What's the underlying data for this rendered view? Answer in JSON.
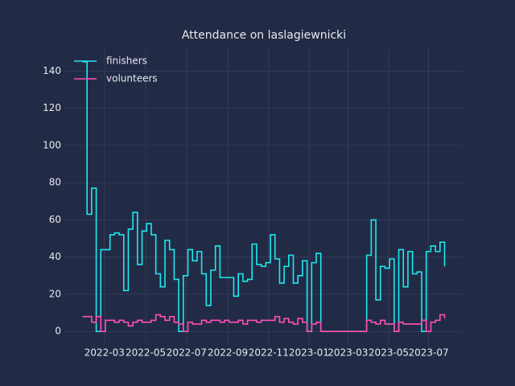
{
  "chart_data": {
    "type": "step",
    "title": "Attendance on laslagiewnicki",
    "x": [
      0,
      1,
      2,
      3,
      4,
      5,
      6,
      7,
      8,
      9,
      10,
      11,
      12,
      13,
      14,
      15,
      16,
      17,
      18,
      19,
      20,
      21,
      22,
      23,
      24,
      25,
      26,
      27,
      28,
      29,
      30,
      31,
      32,
      33,
      34,
      35,
      36,
      37,
      38,
      39,
      40,
      41,
      42,
      43,
      44,
      45,
      46,
      47,
      48,
      49,
      50,
      51,
      52,
      53,
      54,
      55,
      56,
      57,
      58,
      59,
      60,
      61,
      62,
      63,
      64,
      65,
      66,
      67,
      68,
      69,
      70,
      71,
      72,
      73,
      74,
      75,
      76,
      77,
      78,
      79
    ],
    "series": [
      {
        "name": "finishers",
        "color": "#1ee8f0",
        "values": [
          145,
          63,
          77,
          0,
          44,
          44,
          52,
          53,
          52,
          22,
          55,
          64,
          36,
          54,
          58,
          52,
          31,
          24,
          49,
          44,
          28,
          0,
          30,
          44,
          38,
          43,
          31,
          14,
          33,
          46,
          29,
          29,
          29,
          19,
          31,
          27,
          28,
          47,
          36,
          35,
          37,
          52,
          39,
          26,
          35,
          41,
          26,
          30,
          38,
          0,
          37,
          42,
          0,
          0,
          0,
          0,
          0,
          0,
          0,
          0,
          0,
          0,
          41,
          60,
          17,
          35,
          34,
          39,
          0,
          44,
          24,
          43,
          31,
          32,
          0,
          43,
          46,
          43,
          48,
          35
        ]
      },
      {
        "name": "volunteers",
        "color": "#ff4fb8",
        "values": [
          8,
          8,
          5,
          8,
          0,
          6,
          6,
          5,
          6,
          5,
          3,
          5,
          6,
          5,
          5,
          6,
          9,
          8,
          6,
          8,
          5,
          4,
          0,
          5,
          4,
          4,
          6,
          5,
          6,
          6,
          5,
          6,
          5,
          5,
          6,
          4,
          6,
          6,
          5,
          6,
          6,
          6,
          8,
          5,
          7,
          5,
          4,
          7,
          5,
          0,
          4,
          5,
          0,
          0,
          0,
          0,
          0,
          0,
          0,
          0,
          0,
          0,
          6,
          5,
          4,
          6,
          4,
          4,
          0,
          5,
          4,
          4,
          4,
          4,
          6,
          0,
          5,
          6,
          9,
          7
        ]
      }
    ],
    "xlim": [
      -3.95,
      82.95
    ],
    "xticks": [
      {
        "value": 4.8,
        "label": "2022-03"
      },
      {
        "value": 13.8,
        "label": "2022-05"
      },
      {
        "value": 22.7,
        "label": "2022-07"
      },
      {
        "value": 31.7,
        "label": "2022-09"
      },
      {
        "value": 40.6,
        "label": "2022-11"
      },
      {
        "value": 49.4,
        "label": "2023-01"
      },
      {
        "value": 57.9,
        "label": "2023-03"
      },
      {
        "value": 66.8,
        "label": "2023-05"
      },
      {
        "value": 75.5,
        "label": "2023-07"
      }
    ],
    "ylim": [
      -7.25,
      152.25
    ],
    "yticks": [
      0,
      20,
      40,
      60,
      80,
      100,
      120,
      140
    ],
    "grid": true,
    "legend": "upper left"
  }
}
